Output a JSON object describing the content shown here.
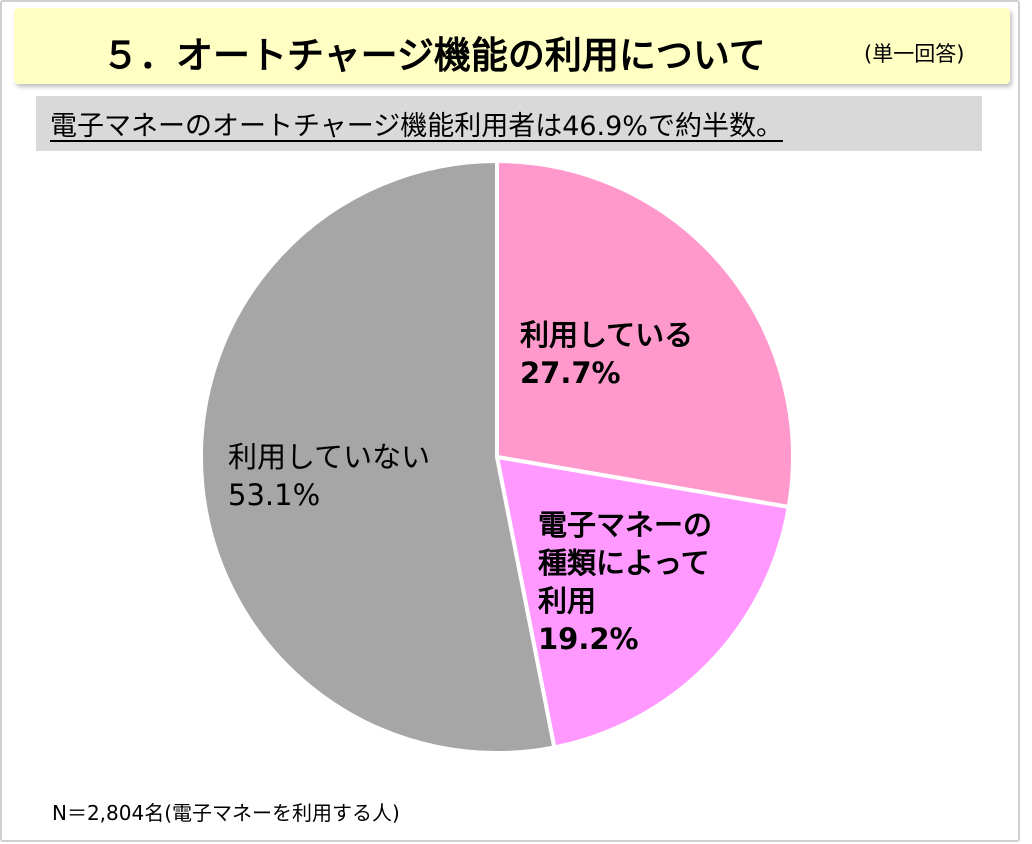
{
  "title": {
    "text": "５．オートチャージ機能の利用について",
    "note": "(単一回答)"
  },
  "headline": "電子マネーのオートチャージ機能利用者は46.9%で約半数。",
  "footnote": "N＝2,804名(電子マネーを利用する人)",
  "chart_data": {
    "type": "pie",
    "start_angle_deg": 0,
    "direction": "clockwise",
    "slices": [
      {
        "label": "利用している",
        "value": 27.7,
        "value_label": "27.7%",
        "color": "#ff99cc",
        "bold": true
      },
      {
        "label": "電子マネーの種類によって利用",
        "label_lines": [
          "電子マネーの",
          "種類によって",
          "利用"
        ],
        "value": 19.2,
        "value_label": "19.2%",
        "color": "#ff99ff",
        "bold": true
      },
      {
        "label": "利用していない",
        "value": 53.1,
        "value_label": "53.1%",
        "color": "#a6a6a6",
        "bold": false
      }
    ]
  }
}
